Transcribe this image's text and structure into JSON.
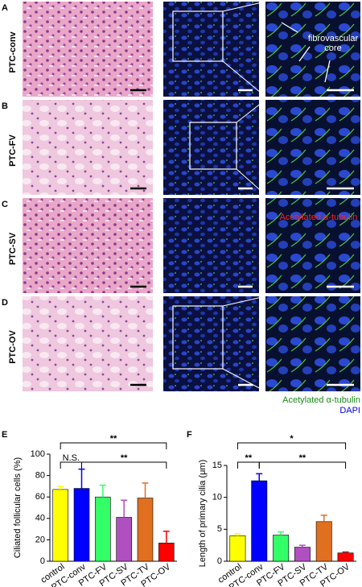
{
  "panels": [
    {
      "letter": "A",
      "label": "PTC-conv",
      "notes": [
        "fibrovascular",
        "core"
      ]
    },
    {
      "letter": "B",
      "label": "PTC-FV"
    },
    {
      "letter": "C",
      "label": "PTC-SV",
      "notes": [
        "Acetylated α-tubulin"
      ]
    },
    {
      "letter": "D",
      "label": "PTC-OV"
    }
  ],
  "legend": [
    "Acetylated α-tubulin",
    "DAPI"
  ],
  "chart_data": [
    {
      "type": "bar",
      "letter": "E",
      "ylabel": "Ciliated follicular cells (%)",
      "categories": [
        "control",
        "PTC-conv",
        "PTC-FV",
        "PTC-SV",
        "PTC-TV",
        "PTC-OV"
      ],
      "values": [
        67,
        68,
        60,
        41,
        59,
        17
      ],
      "errors": [
        3,
        18,
        11,
        16,
        14,
        11
      ],
      "colors": [
        "#ffff00",
        "#0000ff",
        "#33ff66",
        "#b050c0",
        "#e07020",
        "#ff0000"
      ],
      "ylim": [
        0,
        100
      ],
      "yticks": [
        0,
        20,
        40,
        60,
        80,
        100
      ],
      "annotations": [
        {
          "text": "**",
          "between": [
            "control",
            "PTC-OV"
          ]
        },
        {
          "text": "N.S.",
          "between": [
            "control",
            "PTC-conv"
          ]
        },
        {
          "text": "**",
          "between": [
            "PTC-conv",
            "PTC-OV"
          ]
        }
      ]
    },
    {
      "type": "bar",
      "letter": "F",
      "ylabel": "Length of primary cilia (μm)",
      "categories": [
        "control",
        "PTC-conv",
        "PTC-FV",
        "PTC-SV",
        "PTC-TV",
        "PTC-OV"
      ],
      "values": [
        4.0,
        12.6,
        4.1,
        2.2,
        6.2,
        1.3
      ],
      "errors": [
        0.3,
        1.1,
        0.5,
        0.3,
        1.0,
        0.15
      ],
      "colors": [
        "#ffff00",
        "#0000ff",
        "#33ff66",
        "#b050c0",
        "#e07020",
        "#ff0000"
      ],
      "ylim": [
        0,
        15
      ],
      "yticks": [
        0,
        5,
        10,
        15
      ],
      "annotations": [
        {
          "text": "*",
          "between": [
            "control",
            "PTC-OV"
          ]
        },
        {
          "text": "**",
          "between": [
            "control",
            "PTC-conv"
          ]
        },
        {
          "text": "**",
          "between": [
            "PTC-conv",
            "PTC-OV"
          ]
        }
      ]
    }
  ]
}
